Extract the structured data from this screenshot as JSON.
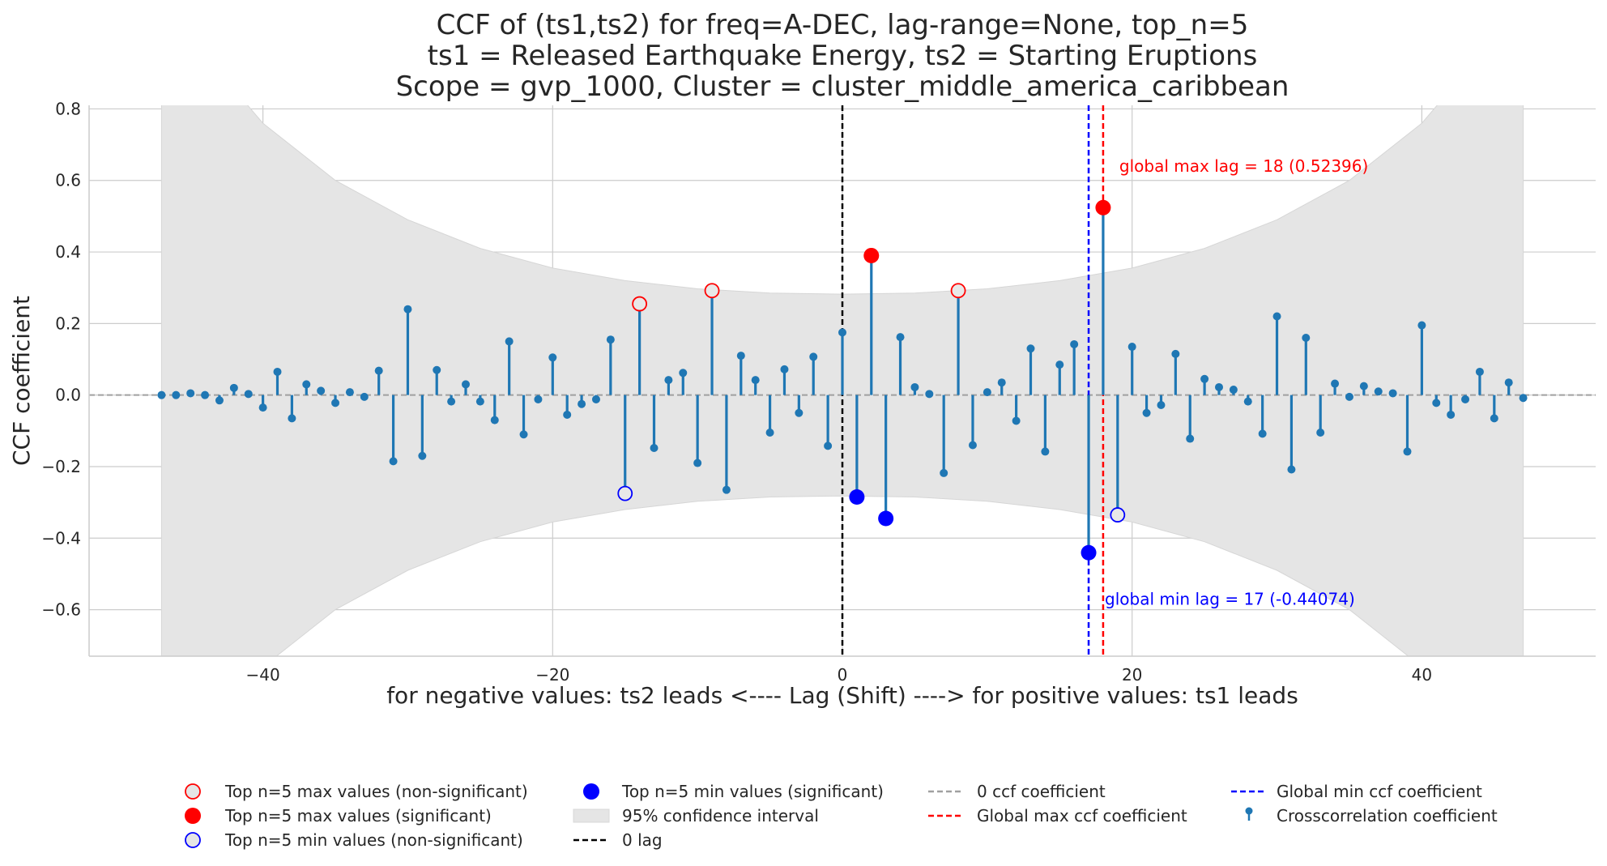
{
  "chart_data": {
    "type": "stem",
    "title_lines": [
      "CCF of (ts1,ts2) for freq=A-DEC, lag-range=None, top_n=5",
      "ts1 = Released Earthquake Energy, ts2 = Starting Eruptions",
      "Scope = gvp_1000, Cluster = cluster_middle_america_caribbean"
    ],
    "xlabel": "for negative values: ts2 leads <----    Lag (Shift)    ----> for positive values: ts1 leads",
    "ylabel": "CCF coefficient",
    "xlim": [
      -52,
      52
    ],
    "ylim": [
      -0.73,
      0.81
    ],
    "x_ticks": [
      -40,
      -20,
      0,
      20,
      40
    ],
    "x_tick_labels": [
      "−40",
      "−20",
      "0",
      "20",
      "40"
    ],
    "y_ticks": [
      -0.6,
      -0.4,
      -0.2,
      0.0,
      0.2,
      0.4,
      0.6,
      0.8
    ],
    "y_tick_labels": [
      "−0.6",
      "−0.4",
      "−0.2",
      "0.0",
      "0.2",
      "0.4",
      "0.6",
      "0.8"
    ],
    "grid": true,
    "legend_placement": "bottom",
    "lags": [
      -47,
      -46,
      -45,
      -44,
      -43,
      -42,
      -41,
      -40,
      -39,
      -38,
      -37,
      -36,
      -35,
      -34,
      -33,
      -32,
      -31,
      -30,
      -29,
      -28,
      -27,
      -26,
      -25,
      -24,
      -23,
      -22,
      -21,
      -20,
      -19,
      -18,
      -17,
      -16,
      -15,
      -14,
      -13,
      -12,
      -11,
      -10,
      -9,
      -8,
      -7,
      -6,
      -5,
      -4,
      -3,
      -2,
      -1,
      0,
      1,
      2,
      3,
      4,
      5,
      6,
      7,
      8,
      9,
      10,
      11,
      12,
      13,
      14,
      15,
      16,
      17,
      18,
      19,
      20,
      21,
      22,
      23,
      24,
      25,
      26,
      27,
      28,
      29,
      30,
      31,
      32,
      33,
      34,
      35,
      36,
      37,
      38,
      39,
      40,
      41,
      42,
      43,
      44,
      45,
      46,
      47
    ],
    "ccf": [
      0.0,
      0.0,
      0.005,
      0.0,
      -0.015,
      0.02,
      0.003,
      -0.035,
      0.065,
      -0.065,
      0.03,
      0.012,
      -0.022,
      0.008,
      -0.005,
      0.068,
      -0.185,
      0.24,
      -0.17,
      0.07,
      -0.018,
      0.03,
      -0.018,
      -0.07,
      0.15,
      -0.11,
      -0.012,
      0.105,
      -0.055,
      -0.025,
      -0.012,
      0.155,
      -0.275,
      0.255,
      -0.148,
      0.042,
      0.062,
      -0.19,
      0.292,
      -0.265,
      0.11,
      0.042,
      -0.105,
      0.072,
      -0.05,
      0.107,
      -0.142,
      0.175,
      -0.285,
      0.39,
      -0.345,
      0.162,
      0.022,
      0.003,
      -0.218,
      0.292,
      -0.14,
      0.008,
      0.035,
      -0.072,
      0.13,
      -0.158,
      0.085,
      0.142,
      -0.44074,
      0.52396,
      -0.335,
      0.135,
      -0.05,
      -0.028,
      0.115,
      -0.122,
      0.045,
      0.022,
      0.015,
      -0.018,
      -0.108,
      0.22,
      -0.208,
      0.16,
      -0.105,
      0.032,
      -0.005,
      0.025,
      0.01,
      0.005,
      -0.158,
      0.195,
      -0.022,
      -0.055,
      -0.012,
      0.065,
      -0.065,
      0.035,
      -0.008
    ],
    "confidence_interval": {
      "description": "95% confidence interval",
      "lags": [
        -47,
        -44,
        -40,
        -35,
        -30,
        -25,
        -20,
        -15,
        -10,
        -5,
        0,
        5,
        10,
        15,
        20,
        25,
        30,
        35,
        40,
        44,
        47
      ],
      "upper": [
        1.2,
        0.95,
        0.76,
        0.6,
        0.49,
        0.41,
        0.355,
        0.32,
        0.297,
        0.285,
        0.282,
        0.285,
        0.297,
        0.32,
        0.355,
        0.41,
        0.49,
        0.6,
        0.76,
        0.95,
        1.2
      ],
      "lower": [
        -1.2,
        -0.95,
        -0.76,
        -0.6,
        -0.49,
        -0.41,
        -0.355,
        -0.32,
        -0.297,
        -0.285,
        -0.282,
        -0.285,
        -0.297,
        -0.32,
        -0.355,
        -0.41,
        -0.49,
        -0.6,
        -0.76,
        -0.95,
        -1.2
      ]
    },
    "top_max_nonsignificant": [
      {
        "x": -14,
        "y": 0.255
      },
      {
        "x": -9,
        "y": 0.292
      },
      {
        "x": 8,
        "y": 0.292
      }
    ],
    "top_max_significant": [
      {
        "x": 2,
        "y": 0.39
      },
      {
        "x": 18,
        "y": 0.52396
      }
    ],
    "top_min_nonsignificant": [
      {
        "x": -15,
        "y": -0.275
      },
      {
        "x": 19,
        "y": -0.335
      }
    ],
    "top_min_significant": [
      {
        "x": 1,
        "y": -0.285
      },
      {
        "x": 3,
        "y": -0.345
      },
      {
        "x": 17,
        "y": -0.44074
      }
    ],
    "zero_lag_x": 0,
    "global_max": {
      "lag": 18,
      "value": 0.52396,
      "label": "global max lag = 18 (0.52396)"
    },
    "global_min": {
      "lag": 17,
      "value": -0.44074,
      "label": "global min lag = 17 (-0.44074)"
    },
    "legend": [
      "Top n=5 max values (non-significant)",
      "Top n=5 max values (significant)",
      "Top n=5 min values (non-significant)",
      "Top n=5 min values (significant)",
      "95% confidence interval",
      "0 lag",
      "0 ccf coefficient",
      "Global max ccf coefficient",
      "Global min ccf coefficient",
      "Crosscorrelation coefficient"
    ],
    "colors": {
      "stem": "#1f77b4",
      "max": "#ff0000",
      "min": "#0000ff",
      "zero_lag": "#000000",
      "zero_line": "#a0a0a0",
      "ci_fill": "#e5e5e5",
      "grid": "#cccccc"
    }
  }
}
